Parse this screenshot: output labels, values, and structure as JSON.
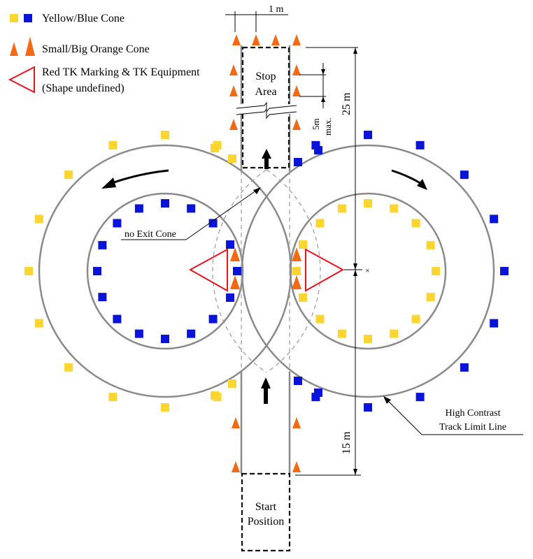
{
  "legend": {
    "cone_colors": "Yellow/Blue Cone",
    "orange_cones": "Small/Big Orange Cone",
    "tk_line1": "Red TK Marking & TK Equipment",
    "tk_line2": "(Shape undefined)"
  },
  "labels": {
    "stop_area_line1": "Stop",
    "stop_area_line2": "Area",
    "start_line1": "Start",
    "start_line2": "Position",
    "no_exit": "no Exit Cone",
    "track_limit_line1": "High Contrast",
    "track_limit_line2": "Track Limit Line",
    "center_mark": "×"
  },
  "dimensions": {
    "lane_width": "1 m",
    "cone_spacing": "5m",
    "cone_spacing_qualifier": "max.",
    "upper_length": "25 m",
    "lower_length": "15 m"
  },
  "colors": {
    "yellow_cone": "#fcd531",
    "blue_cone": "#0a14d9",
    "orange_cone": "#f46a14",
    "tk_red": "#e8141c",
    "track_line": "#8a8a8a"
  }
}
